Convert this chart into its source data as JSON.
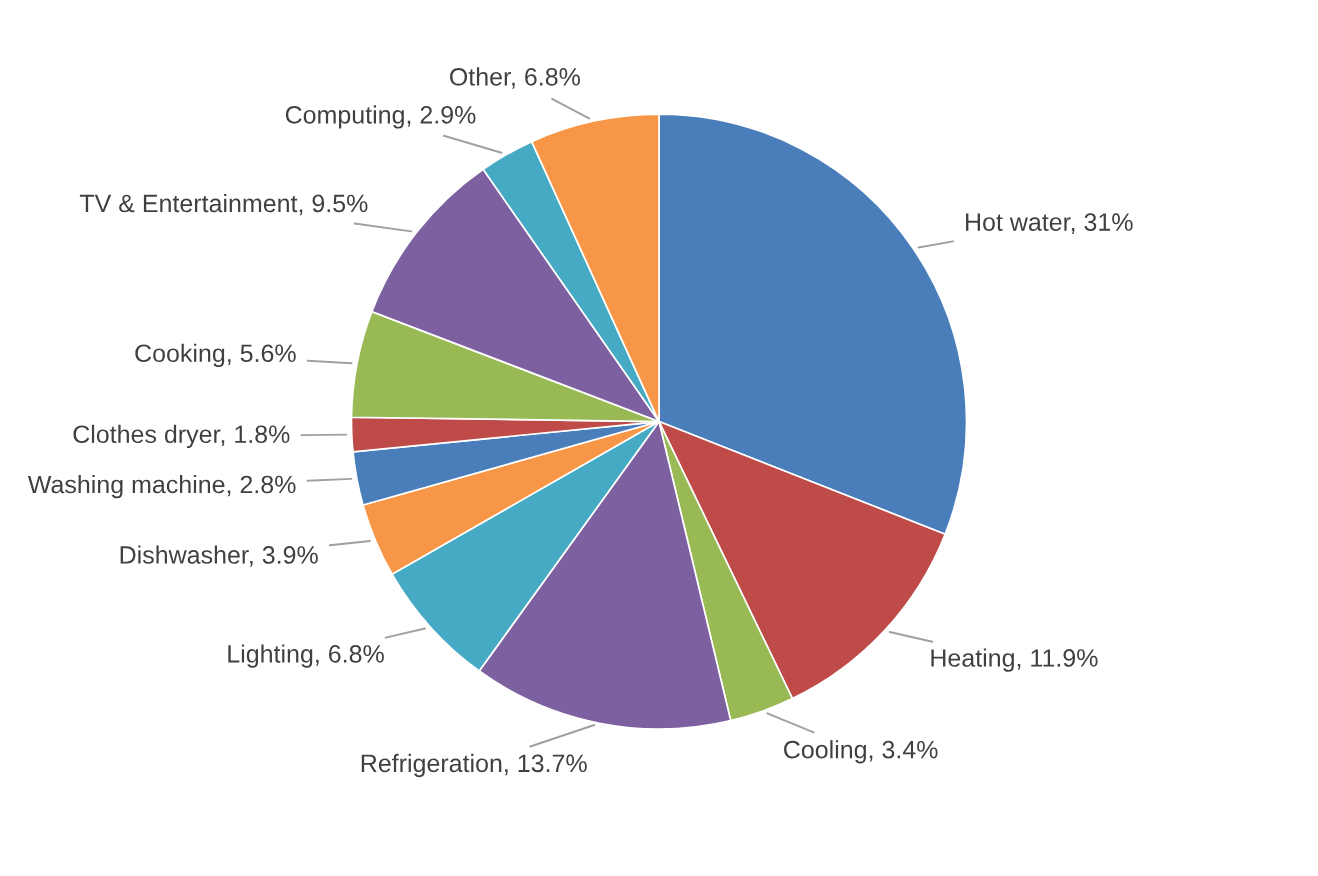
{
  "chart_data": {
    "type": "pie",
    "categories": [
      "Hot water",
      "Heating",
      "Cooling",
      "Refrigeration",
      "Lighting",
      "Dishwasher",
      "Washing machine",
      "Clothes dryer",
      "Cooking",
      "TV & Entertainment",
      "Computing",
      "Other"
    ],
    "values": [
      31,
      11.9,
      3.4,
      13.7,
      6.8,
      3.9,
      2.8,
      1.8,
      5.6,
      9.5,
      2.9,
      6.8
    ],
    "value_labels": [
      "31%",
      "11.9%",
      "3.4%",
      "13.7%",
      "6.8%",
      "3.9%",
      "2.8%",
      "1.8%",
      "5.6%",
      "9.5%",
      "2.9%",
      "6.8%"
    ],
    "colors": [
      "#4a7ebb",
      "#be4b48",
      "#98b954",
      "#7d60a0",
      "#46aac5",
      "#f79646",
      "#4a7ebb",
      "#be4b48",
      "#98b954",
      "#7d60a0",
      "#46aac5",
      "#f79646"
    ],
    "legend": false
  }
}
